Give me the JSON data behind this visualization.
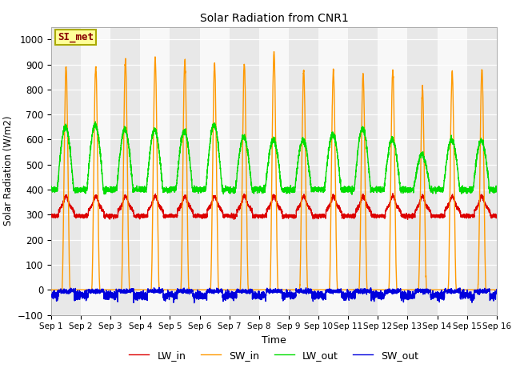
{
  "title": "Solar Radiation from CNR1",
  "xlabel": "Time",
  "ylabel": "Solar Radiation (W/m2)",
  "ylim": [
    -100,
    1050
  ],
  "yticks": [
    -100,
    0,
    100,
    200,
    300,
    400,
    500,
    600,
    700,
    800,
    900,
    1000
  ],
  "line_colors": {
    "LW_in": "#dd0000",
    "SW_in": "#ff9900",
    "LW_out": "#00dd00",
    "SW_out": "#0000dd"
  },
  "line_width": 1.0,
  "annotation_text": "SI_met",
  "annotation_color": "#880000",
  "annotation_box_facecolor": "#ffff99",
  "annotation_box_edgecolor": "#aaaa00",
  "bg_light": "#f0f0f0",
  "bg_dark": "#e0e0e0",
  "grid_color": "#ffffff",
  "n_days": 15,
  "sw_peaks": [
    890,
    890,
    915,
    920,
    910,
    900,
    900,
    950,
    875,
    875,
    860,
    875,
    800,
    870,
    880
  ],
  "lw_out_peaks": [
    650,
    660,
    640,
    638,
    635,
    660,
    610,
    600,
    600,
    625,
    645,
    600,
    540,
    600,
    595
  ],
  "legend_entries": [
    "LW_in",
    "SW_in",
    "LW_out",
    "SW_out"
  ]
}
